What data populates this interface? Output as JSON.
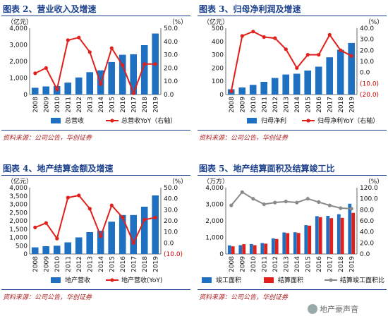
{
  "watermark": "地产豪声音",
  "colors": {
    "bar_blue": "#1f70c1",
    "bar_red": "#e0201a",
    "line_red": "#e0201a",
    "line_grey": "#8a8a8a",
    "title_blue": "#1a3f8c",
    "neg_red": "#d40000"
  },
  "chart_data": [
    {
      "type": "bar",
      "title": "图表 2、营业收入及增速",
      "source": "资料来源：公司公告，华创证券",
      "left_unit": "（亿元）",
      "right_unit": "（%）",
      "categories": [
        "2008",
        "2009",
        "2010",
        "2011",
        "2012",
        "2013",
        "2014",
        "2015",
        "2016",
        "2017",
        "2018",
        "2019"
      ],
      "left_ticks": [
        "0",
        "1,000",
        "2,000",
        "3,000",
        "4,000"
      ],
      "right_ticks": [
        "0.0",
        "10.0",
        "20.0",
        "30.0",
        "40.0",
        "50.0"
      ],
      "ylim_left": [
        0,
        4000
      ],
      "ylim_right": [
        0,
        50
      ],
      "series": [
        {
          "name": "总营收",
          "kind": "bar",
          "color": "#1f70c1",
          "values": [
            410,
            490,
            510,
            720,
            1030,
            1350,
            1460,
            1960,
            2400,
            2430,
            2980,
            3680
          ]
        },
        {
          "name": "总营收YoY（右轴）",
          "kind": "line",
          "axis": "right",
          "color": "#e0201a",
          "values": [
            16,
            20,
            4,
            41,
            43,
            32,
            8,
            35,
            22,
            1,
            23,
            23
          ]
        }
      ]
    },
    {
      "type": "bar",
      "title": "图表 3、归母净利润及增速",
      "source": "资料来源：公司公告，华创证券",
      "left_unit": "（亿元）",
      "right_unit": "（%）",
      "categories": [
        "2008",
        "2009",
        "2010",
        "2011",
        "2012",
        "2013",
        "2014",
        "2015",
        "2016",
        "2017",
        "2018",
        "2019"
      ],
      "left_ticks": [
        "0",
        "100",
        "200",
        "300",
        "400",
        "500"
      ],
      "right_ticks": [
        "(20.0)",
        "(10.0)",
        "0.0",
        "10.0",
        "20.0",
        "30.0",
        "40.0"
      ],
      "ylim_left": [
        0,
        500
      ],
      "ylim_right": [
        -20,
        40
      ],
      "series": [
        {
          "name": "归母净利",
          "kind": "bar",
          "color": "#1f70c1",
          "values": [
            40,
            53,
            73,
            96,
            125,
            151,
            157,
            181,
            210,
            281,
            338,
            389
          ]
        },
        {
          "name": "归母净利YoY（右轴）",
          "kind": "line",
          "axis": "right",
          "color": "#e0201a",
          "values": [
            -17,
            33,
            37,
            32,
            31,
            21,
            4,
            16,
            16,
            34,
            20,
            15
          ]
        }
      ]
    },
    {
      "type": "bar",
      "title": "图表 4、地产结算金额及增速",
      "source": "资料来源：公司公告，华创证券",
      "left_unit": "（亿元）",
      "right_unit": "（%）",
      "categories": [
        "2008",
        "2009",
        "2010",
        "2011",
        "2012",
        "2013",
        "2014",
        "2015",
        "2016",
        "2017",
        "2018",
        "2019"
      ],
      "left_ticks": [
        "0",
        "500",
        "1,000",
        "1,500",
        "2,000",
        "2,500",
        "3,000",
        "3,500",
        "4,000"
      ],
      "right_ticks": [
        "(10.0)",
        "0.0",
        "10.0",
        "20.0",
        "30.0",
        "40.0",
        "50.0"
      ],
      "ylim_left": [
        0,
        4000
      ],
      "ylim_right": [
        -10,
        50
      ],
      "series": [
        {
          "name": "地产营收",
          "kind": "bar",
          "color": "#1f70c1",
          "values": [
            400,
            470,
            500,
            700,
            1000,
            1320,
            1400,
            1950,
            2350,
            2350,
            2850,
            3530
          ]
        },
        {
          "name": "地产营收(YoY)",
          "kind": "line",
          "axis": "right",
          "color": "#e0201a",
          "values": [
            14,
            18,
            4,
            41,
            43,
            31,
            6,
            34,
            23,
            0,
            21,
            23
          ]
        }
      ]
    },
    {
      "type": "bar",
      "title": "图表 5、地产结算面积及结算竣工比",
      "source": "资料来源：公司公告，华创证券",
      "left_unit": "（万方）",
      "right_unit": "（%）",
      "categories": [
        "2008",
        "2009",
        "2010",
        "2011",
        "2012",
        "2013",
        "2014",
        "2015",
        "2016",
        "2017",
        "2018",
        "2019"
      ],
      "left_ticks": [
        "0",
        "1,000",
        "2,000",
        "3,000",
        "4,000"
      ],
      "right_ticks": [
        "0.0",
        "20.0",
        "40.0",
        "60.0",
        "80.0",
        "100.0",
        "120.0"
      ],
      "ylim_left": [
        0,
        4000
      ],
      "ylim_right": [
        0,
        120
      ],
      "series": [
        {
          "name": "竣工面积",
          "kind": "bar",
          "color": "#1f70c1",
          "values": [
            520,
            530,
            600,
            660,
            940,
            1300,
            1310,
            1740,
            2280,
            2300,
            2400,
            3030
          ]
        },
        {
          "name": "结算面积",
          "kind": "bar",
          "color": "#e0201a",
          "values": [
            460,
            590,
            530,
            620,
            900,
            1260,
            1270,
            1710,
            2220,
            2160,
            2180,
            2480
          ]
        },
        {
          "name": "结算竣工面积比",
          "kind": "line",
          "axis": "right",
          "color": "#8a8a8a",
          "values": [
            88,
            112,
            100,
            90,
            93,
            95,
            93,
            100,
            94,
            88,
            83,
            82
          ]
        }
      ]
    }
  ]
}
